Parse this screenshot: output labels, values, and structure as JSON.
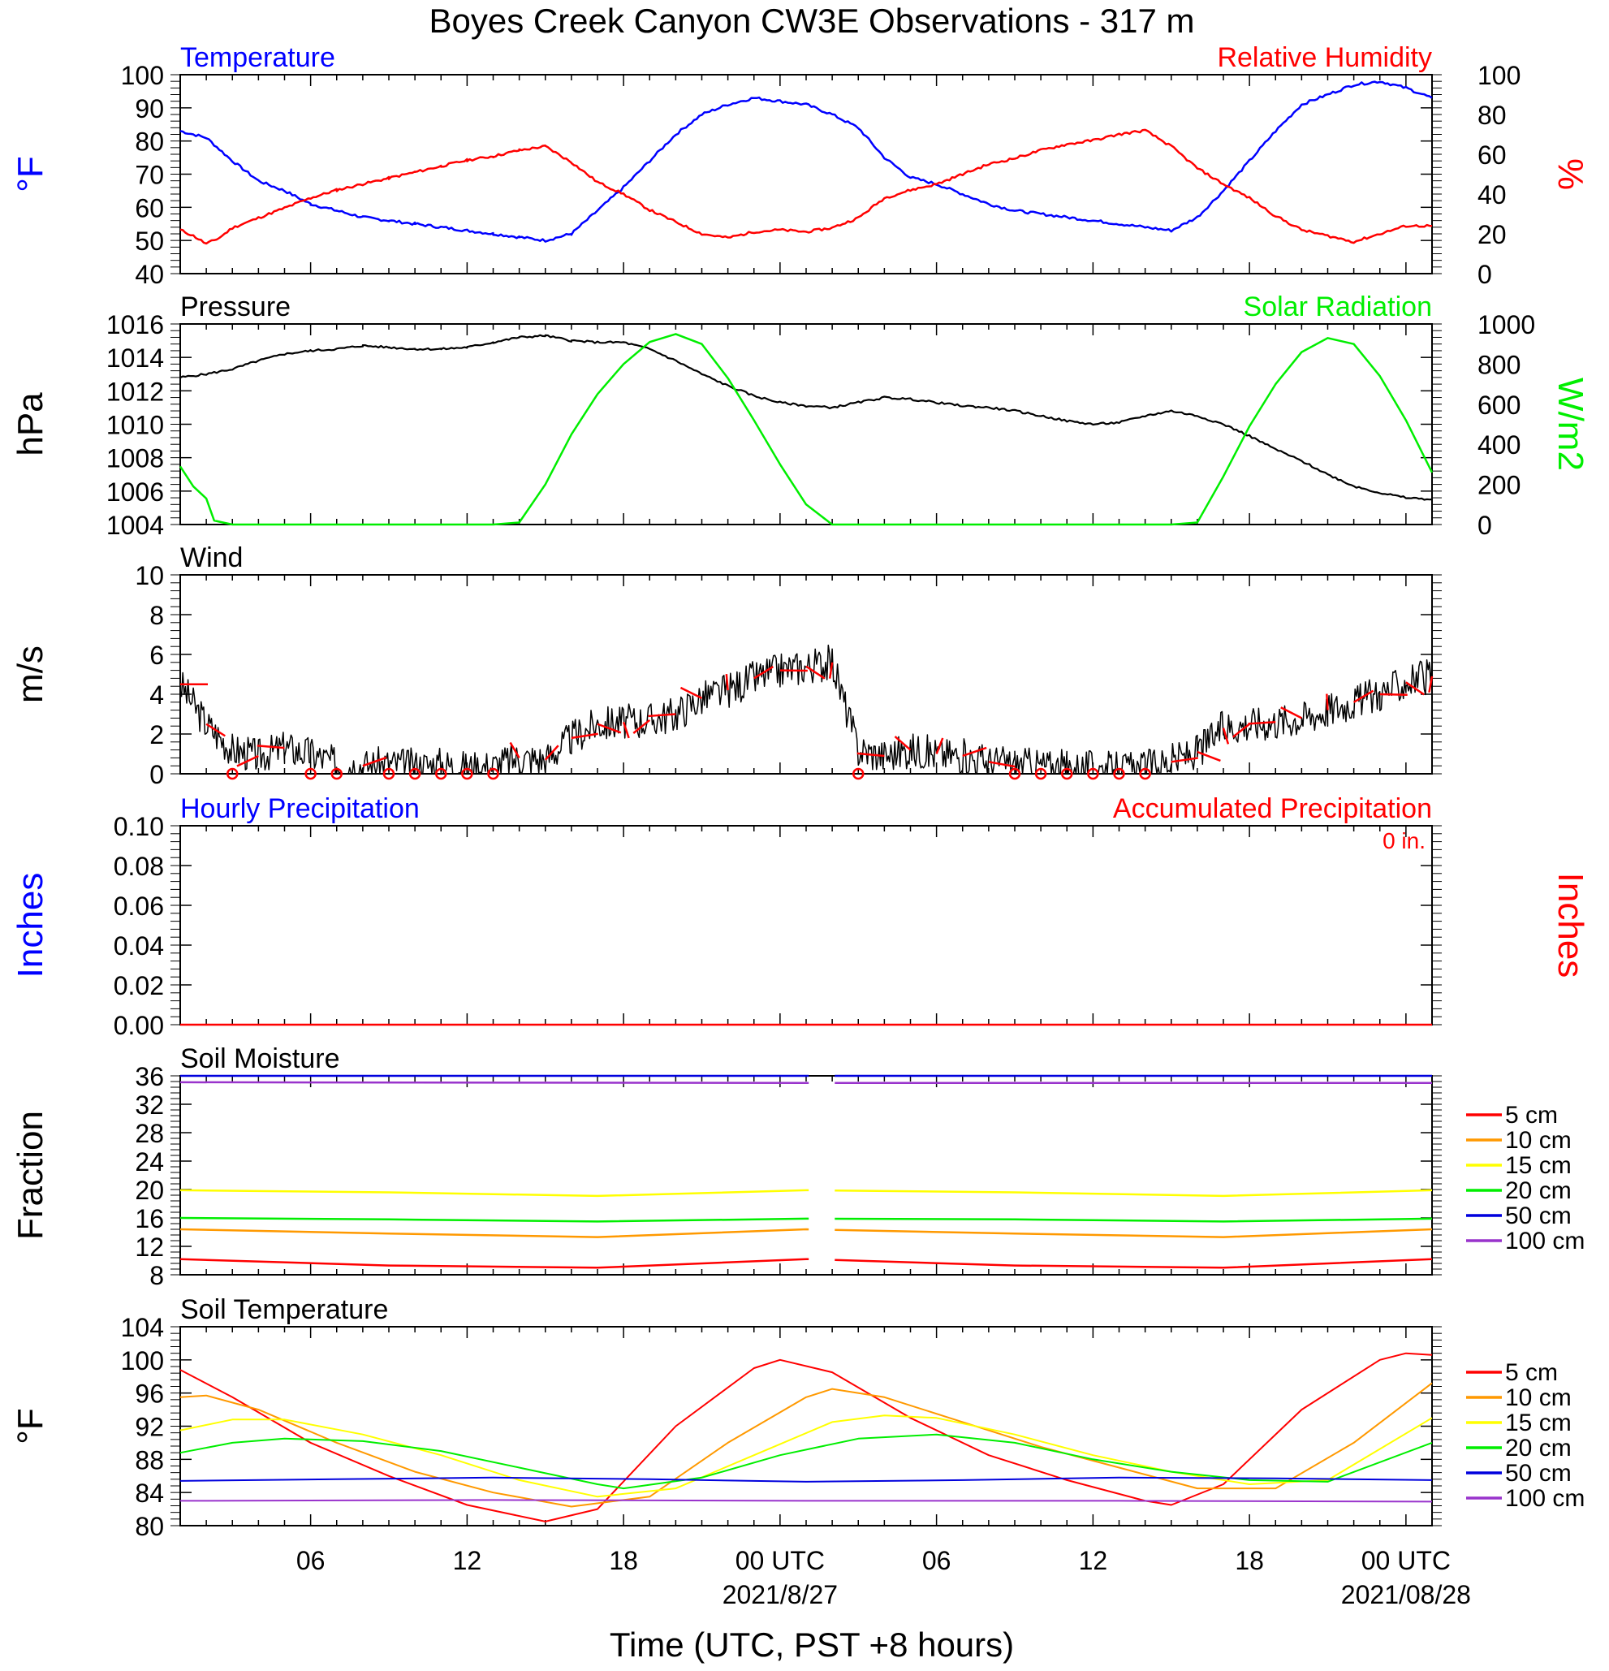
{
  "title": "Boyes Creek Canyon CW3E Observations - 317 m",
  "xlabel": "Time (UTC, PST +8 hours)",
  "x_axis": {
    "tick_labels": [
      "06",
      "12",
      "18",
      "00 UTC",
      "06",
      "12",
      "18",
      "00 UTC"
    ],
    "tick_hours": [
      6,
      12,
      18,
      24,
      30,
      36,
      42,
      48
    ],
    "date_labels": [
      "2021/8/27",
      "2021/08/28"
    ],
    "range_hours": [
      1,
      49
    ]
  },
  "colors": {
    "temperature": "#0000ff",
    "humidity": "#ff0000",
    "pressure": "#000000",
    "solar": "#00ee00",
    "wind": "#000000",
    "wind_barbs": "#ff0000",
    "precip_hourly": "#0000ff",
    "precip_accum": "#ff0000",
    "depth_5": "#ff0000",
    "depth_10": "#ff9900",
    "depth_15": "#ffff00",
    "depth_20": "#00ee00",
    "depth_50": "#0000dd",
    "depth_100": "#9933cc"
  },
  "chart_data": [
    {
      "type": "line",
      "title": "Temperature / Relative Humidity",
      "left_title": "Temperature",
      "right_title": "Relative Humidity",
      "ylabel_left": "°F",
      "ylabel_right": "%",
      "ylim_left": [
        40,
        100
      ],
      "ylim_right": [
        0,
        100
      ],
      "yticks_left": [
        "40",
        "50",
        "60",
        "70",
        "80",
        "90",
        "100"
      ],
      "yticks_right": [
        "0",
        "20",
        "40",
        "60",
        "80",
        "100"
      ],
      "series": [
        {
          "name": "Temperature",
          "axis": "left",
          "x": [
            1,
            2,
            3,
            4,
            5,
            6,
            7,
            8,
            9,
            10,
            11,
            12,
            13,
            14,
            15,
            16,
            17,
            18,
            19,
            20,
            21,
            22,
            23,
            24,
            25,
            26,
            27,
            28,
            29,
            30,
            31,
            32,
            33,
            34,
            35,
            36,
            37,
            38,
            39,
            40,
            41,
            42,
            43,
            44,
            45,
            46,
            47,
            48,
            49
          ],
          "y": [
            83,
            81,
            74,
            68,
            65,
            61,
            59,
            57,
            56,
            55,
            54,
            53,
            52,
            51,
            50,
            52,
            59,
            66,
            74,
            82,
            88,
            91,
            93,
            92,
            91,
            88,
            84,
            75,
            69,
            67,
            64,
            61,
            59,
            58,
            57,
            56,
            55,
            54,
            53,
            57,
            65,
            74,
            83,
            91,
            94,
            97,
            98,
            96,
            93
          ]
        },
        {
          "name": "Relative Humidity",
          "axis": "right",
          "x": [
            1,
            1.5,
            2,
            2.5,
            3,
            4,
            5,
            6,
            7,
            8,
            9,
            10,
            11,
            12,
            13,
            14,
            15,
            16,
            17,
            18,
            19,
            20,
            21,
            22,
            23,
            24,
            25,
            26,
            27,
            28,
            29,
            30,
            31,
            32,
            33,
            34,
            35,
            36,
            37,
            38,
            39,
            40,
            41,
            42,
            43,
            44,
            45,
            46,
            47,
            48,
            49
          ],
          "y": [
            22,
            19,
            15,
            18,
            23,
            28,
            33,
            38,
            42,
            45,
            48,
            51,
            54,
            57,
            59,
            62,
            64,
            56,
            46,
            40,
            32,
            26,
            20,
            18,
            21,
            22,
            21,
            23,
            28,
            38,
            42,
            45,
            50,
            55,
            58,
            62,
            65,
            67,
            70,
            72,
            64,
            53,
            45,
            38,
            29,
            22,
            19,
            16,
            20,
            24,
            24
          ]
        }
      ]
    },
    {
      "type": "line",
      "title": "Pressure / Solar Radiation",
      "left_title": "Pressure",
      "right_title": "Solar Radiation",
      "ylabel_left": "hPa",
      "ylabel_right": "W/m2",
      "ylim_left": [
        1004,
        1016
      ],
      "ylim_right": [
        0,
        1000
      ],
      "yticks_left": [
        "1004",
        "1006",
        "1008",
        "1010",
        "1012",
        "1014",
        "1016"
      ],
      "yticks_right": [
        "0",
        "200",
        "400",
        "600",
        "800",
        "1000"
      ],
      "series": [
        {
          "name": "Pressure",
          "axis": "left",
          "x": [
            1,
            2,
            3,
            4,
            5,
            6,
            7,
            8,
            9,
            10,
            11,
            12,
            13,
            14,
            15,
            16,
            17,
            18,
            19,
            20,
            21,
            22,
            23,
            24,
            25,
            26,
            27,
            28,
            29,
            30,
            31,
            32,
            33,
            34,
            35,
            36,
            37,
            38,
            39,
            40,
            41,
            42,
            43,
            44,
            45,
            46,
            47,
            48,
            49
          ],
          "y": [
            1012.8,
            1013.0,
            1013.3,
            1013.8,
            1014.2,
            1014.4,
            1014.5,
            1014.7,
            1014.6,
            1014.5,
            1014.5,
            1014.6,
            1014.9,
            1015.2,
            1015.3,
            1015.0,
            1014.9,
            1014.9,
            1014.5,
            1013.8,
            1013.0,
            1012.3,
            1011.7,
            1011.3,
            1011.1,
            1011.0,
            1011.3,
            1011.6,
            1011.5,
            1011.3,
            1011.1,
            1011.0,
            1010.8,
            1010.5,
            1010.2,
            1010.0,
            1010.1,
            1010.5,
            1010.8,
            1010.5,
            1010.0,
            1009.3,
            1008.5,
            1007.8,
            1007.0,
            1006.3,
            1005.9,
            1005.6,
            1005.5
          ]
        },
        {
          "name": "Solar Radiation",
          "axis": "right",
          "x": [
            1,
            1.5,
            2,
            2.3,
            3,
            5,
            7,
            9,
            11,
            13,
            14,
            15,
            16,
            17,
            18,
            19,
            20,
            21,
            22,
            23,
            24,
            25,
            25.6,
            26,
            27,
            29,
            31,
            33,
            35,
            37,
            39,
            40,
            41,
            42,
            43,
            44,
            45,
            46,
            47,
            48,
            49
          ],
          "y": [
            290,
            190,
            130,
            20,
            0,
            0,
            0,
            0,
            0,
            0,
            10,
            200,
            450,
            650,
            800,
            910,
            950,
            900,
            730,
            520,
            300,
            100,
            40,
            0,
            0,
            0,
            0,
            0,
            0,
            0,
            0,
            10,
            240,
            490,
            700,
            860,
            930,
            900,
            740,
            520,
            260
          ]
        }
      ]
    },
    {
      "type": "line",
      "title": "Wind",
      "ylabel": "m/s",
      "ylim": [
        0,
        10
      ],
      "yticks": [
        "0",
        "2",
        "4",
        "6",
        "8",
        "10"
      ],
      "series": [
        {
          "name": "Wind",
          "x": [
            1,
            2,
            3,
            4,
            5,
            6,
            7,
            8,
            9,
            10,
            11,
            12,
            13,
            14,
            15,
            16,
            17,
            18,
            19,
            20,
            21,
            22,
            23,
            24,
            25,
            26,
            27,
            28,
            29,
            30,
            31,
            32,
            33,
            34,
            35,
            36,
            37,
            38,
            39,
            40,
            41,
            42,
            43,
            44,
            45,
            46,
            47,
            48,
            49
          ],
          "y": [
            4.5,
            2.5,
            1.2,
            0.9,
            1.3,
            1.0,
            0.5,
            0.4,
            0.5,
            0.4,
            0.5,
            0.3,
            0.4,
            0.8,
            0.7,
            1.8,
            2.5,
            2.6,
            2.7,
            3.0,
            3.8,
            4.2,
            4.8,
            5.2,
            5.4,
            5.6,
            1.2,
            0.9,
            1.2,
            1.0,
            0.9,
            0.6,
            0.5,
            0.4,
            0.3,
            0.3,
            0.2,
            0.3,
            0.6,
            1.1,
            2.3,
            2.5,
            2.6,
            2.8,
            3.2,
            3.6,
            4.0,
            4.6,
            4.9
          ]
        }
      ],
      "calm_hours": [
        3,
        6,
        7,
        9,
        10,
        11,
        12,
        13,
        27,
        33,
        34,
        35,
        36,
        37,
        38
      ]
    },
    {
      "type": "line",
      "title": "Hourly Precipitation / Accumulated Precipitation",
      "left_title": "Hourly Precipitation",
      "right_title": "Accumulated Precipitation",
      "accum_total": "0 in.",
      "ylabel_left": "Inches",
      "ylabel_right": "Inches",
      "ylim": [
        0,
        0.1
      ],
      "yticks": [
        "0.00",
        "0.02",
        "0.04",
        "0.06",
        "0.08",
        "0.10"
      ],
      "series": [
        {
          "name": "Accumulated Precipitation",
          "x": [
            1,
            49
          ],
          "y": [
            0,
            0
          ]
        }
      ]
    },
    {
      "type": "line",
      "title": "Soil Moisture",
      "ylabel": "Fraction",
      "ylim": [
        8,
        36
      ],
      "yticks": [
        "8",
        "12",
        "16",
        "20",
        "24",
        "28",
        "32",
        "36"
      ],
      "legend": [
        "5 cm",
        "10 cm",
        "15 cm",
        "20 cm",
        "50 cm",
        "100 cm"
      ],
      "gap_hours": [
        25.1,
        26.1
      ],
      "series": [
        {
          "name": "5 cm",
          "x": [
            1,
            9,
            17,
            25,
            33,
            41,
            49
          ],
          "y": [
            10.2,
            9.3,
            9.0,
            10.2,
            9.3,
            9.0,
            10.2
          ]
        },
        {
          "name": "10 cm",
          "x": [
            1,
            9,
            17,
            25,
            33,
            41,
            49
          ],
          "y": [
            14.4,
            13.8,
            13.3,
            14.4,
            13.8,
            13.3,
            14.4
          ]
        },
        {
          "name": "15 cm",
          "x": [
            1,
            9,
            17,
            25,
            33,
            41,
            49
          ],
          "y": [
            19.9,
            19.6,
            19.1,
            19.9,
            19.6,
            19.1,
            19.9
          ]
        },
        {
          "name": "20 cm",
          "x": [
            1,
            9,
            17,
            25,
            33,
            41,
            49
          ],
          "y": [
            16.0,
            15.8,
            15.5,
            15.9,
            15.8,
            15.5,
            15.9
          ]
        },
        {
          "name": "50 cm",
          "x": [
            1,
            25,
            49
          ],
          "y": [
            36.0,
            36.0,
            36.0
          ]
        },
        {
          "name": "100 cm",
          "x": [
            1,
            25,
            49
          ],
          "y": [
            35.1,
            35.0,
            35.0
          ]
        }
      ]
    },
    {
      "type": "line",
      "title": "Soil Temperature",
      "ylabel": "°F",
      "ylim": [
        80,
        104
      ],
      "yticks": [
        "80",
        "84",
        "88",
        "92",
        "96",
        "100",
        "104"
      ],
      "legend": [
        "5 cm",
        "10 cm",
        "15 cm",
        "20 cm",
        "50 cm",
        "100 cm"
      ],
      "series": [
        {
          "name": "5 cm",
          "x": [
            1,
            3,
            6,
            9,
            12,
            15,
            17,
            20,
            23,
            24,
            26,
            29,
            32,
            35,
            38,
            39,
            41,
            44,
            47,
            48,
            49
          ],
          "y": [
            98.8,
            95.5,
            90.0,
            86.0,
            82.5,
            80.5,
            82.0,
            92.0,
            99.0,
            100.0,
            98.5,
            93.0,
            88.5,
            85.5,
            83.0,
            82.5,
            85.0,
            94.0,
            100.0,
            100.8,
            100.6
          ]
        },
        {
          "name": "10 cm",
          "x": [
            1,
            2,
            4,
            7,
            10,
            13,
            16,
            19,
            22,
            25,
            26,
            28,
            31,
            34,
            37,
            40,
            43,
            46,
            49
          ],
          "y": [
            95.5,
            95.7,
            94.0,
            90.0,
            86.5,
            84.0,
            82.3,
            83.5,
            90.0,
            95.5,
            96.5,
            95.5,
            92.5,
            89.5,
            87.0,
            84.5,
            84.5,
            90.0,
            97.2
          ]
        },
        {
          "name": "15 cm",
          "x": [
            1,
            3,
            5,
            8,
            11,
            14,
            17,
            20,
            23,
            26,
            28,
            30,
            33,
            36,
            39,
            42,
            45,
            49
          ],
          "y": [
            91.5,
            92.8,
            92.8,
            91.0,
            88.5,
            85.5,
            83.5,
            84.5,
            88.5,
            92.5,
            93.3,
            93.0,
            91.0,
            88.5,
            86.5,
            85.0,
            85.5,
            93.0
          ]
        },
        {
          "name": "20 cm",
          "x": [
            1,
            3,
            5,
            8,
            11,
            14,
            17,
            18,
            21,
            24,
            27,
            30,
            33,
            36,
            39,
            42,
            45,
            49
          ],
          "y": [
            88.8,
            90.0,
            90.5,
            90.2,
            89.0,
            87.0,
            85.0,
            84.5,
            85.8,
            88.5,
            90.5,
            91.0,
            90.0,
            88.0,
            86.5,
            85.5,
            85.3,
            90.0
          ]
        },
        {
          "name": "50 cm",
          "x": [
            1,
            7,
            13,
            19,
            25,
            31,
            37,
            43,
            49
          ],
          "y": [
            85.4,
            85.6,
            85.8,
            85.6,
            85.3,
            85.5,
            85.8,
            85.7,
            85.5
          ]
        },
        {
          "name": "100 cm",
          "x": [
            1,
            13,
            25,
            37,
            49
          ],
          "y": [
            83.0,
            83.1,
            83.0,
            83.0,
            82.9
          ]
        }
      ]
    }
  ]
}
